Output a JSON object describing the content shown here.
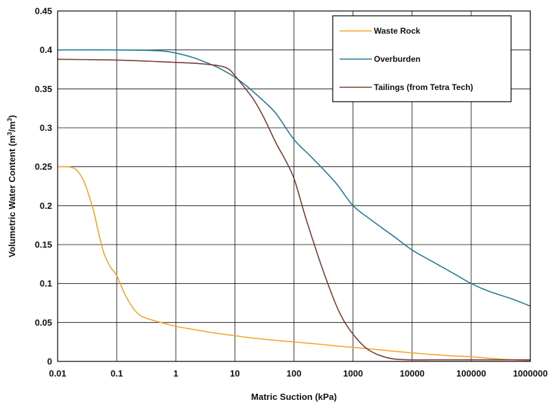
{
  "chart_data": {
    "type": "line",
    "xlabel": "Matric Suction (kPa)",
    "ylabel_parts": [
      "Volumetric Water Content (m",
      "3",
      "/m",
      "3",
      ")"
    ],
    "x_scale": "log",
    "xlim": [
      0.01,
      1000000
    ],
    "ylim": [
      0,
      0.45
    ],
    "x_ticks": [
      0.01,
      0.1,
      1,
      10,
      100,
      1000,
      10000,
      100000,
      1000000
    ],
    "x_tick_labels": [
      "0.01",
      "0.1",
      "1",
      "10",
      "100",
      "1000",
      "10000",
      "100000",
      "1000000"
    ],
    "y_ticks": [
      0,
      0.05,
      0.1,
      0.15,
      0.2,
      0.25,
      0.3,
      0.35,
      0.4,
      0.45
    ],
    "y_tick_labels": [
      "0",
      "0.05",
      "0.1",
      "0.15",
      "0.2",
      "0.25",
      "0.3",
      "0.35",
      "0.4",
      "0.45"
    ],
    "grid": true,
    "legend_position": "top-right",
    "series": [
      {
        "name": "Waste Rock",
        "color": "#f5a42a",
        "x": [
          0.01,
          0.015,
          0.02,
          0.025,
          0.03,
          0.04,
          0.05,
          0.06,
          0.07,
          0.08,
          0.1,
          0.13,
          0.16,
          0.2,
          0.25,
          0.3,
          0.4,
          0.5,
          0.7,
          1,
          2,
          5,
          10,
          20,
          50,
          100,
          200,
          500,
          1000,
          2000,
          5000,
          10000,
          20000,
          50000,
          100000,
          200000,
          500000,
          1000000
        ],
        "y": [
          0.25,
          0.25,
          0.247,
          0.238,
          0.225,
          0.195,
          0.163,
          0.14,
          0.128,
          0.12,
          0.11,
          0.09,
          0.077,
          0.066,
          0.059,
          0.056,
          0.053,
          0.051,
          0.048,
          0.045,
          0.041,
          0.036,
          0.033,
          0.03,
          0.027,
          0.025,
          0.023,
          0.02,
          0.018,
          0.016,
          0.013,
          0.011,
          0.009,
          0.007,
          0.006,
          0.004,
          0.002,
          0.001
        ]
      },
      {
        "name": "Overburden",
        "color": "#1f7a93",
        "x": [
          0.01,
          0.1,
          0.5,
          1,
          2,
          3,
          5,
          7,
          10,
          15,
          20,
          30,
          50,
          100,
          200,
          500,
          1000,
          2000,
          5000,
          10000,
          20000,
          50000,
          100000,
          200000,
          500000,
          1000000
        ],
        "y": [
          0.4,
          0.4,
          0.399,
          0.396,
          0.39,
          0.385,
          0.378,
          0.372,
          0.365,
          0.355,
          0.347,
          0.335,
          0.318,
          0.285,
          0.262,
          0.23,
          0.2,
          0.182,
          0.16,
          0.143,
          0.13,
          0.113,
          0.1,
          0.09,
          0.08,
          0.071
        ]
      },
      {
        "name": "Tailings (from Tetra Tech)",
        "color": "#7a3a30",
        "x": [
          0.01,
          0.1,
          0.5,
          1,
          2,
          4,
          6,
          8,
          10,
          20,
          30,
          50,
          70,
          100,
          150,
          200,
          300,
          500,
          700,
          1000,
          1500,
          2000,
          3000,
          5000,
          10000,
          20000,
          50000,
          100000,
          1000000
        ],
        "y": [
          0.388,
          0.387,
          0.385,
          0.384,
          0.383,
          0.381,
          0.379,
          0.375,
          0.367,
          0.338,
          0.315,
          0.28,
          0.26,
          0.235,
          0.19,
          0.16,
          0.12,
          0.075,
          0.052,
          0.035,
          0.02,
          0.013,
          0.007,
          0.003,
          0.002,
          0.002,
          0.002,
          0.002,
          0.002
        ]
      }
    ]
  }
}
